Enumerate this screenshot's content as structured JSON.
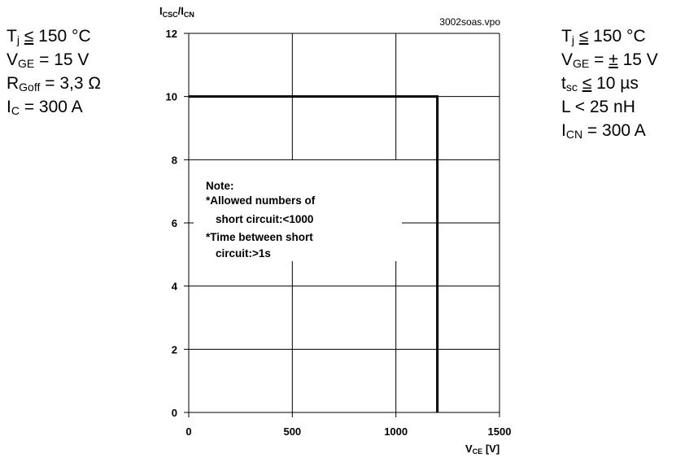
{
  "chart_data": {
    "type": "line",
    "file_label": "3002soas.vpo",
    "y_label": {
      "prefix": "I",
      "sub1": "CSC",
      "mid": "/I",
      "sub2": "CN"
    },
    "x_label": {
      "prefix": "V",
      "sub": "CE",
      "unit": "[V]"
    },
    "xlim": [
      0,
      1500
    ],
    "ylim": [
      0,
      12
    ],
    "x_ticks": [
      "0",
      "500",
      "1000",
      "1500"
    ],
    "y_ticks": [
      "0",
      "2",
      "4",
      "6",
      "8",
      "10",
      "12"
    ],
    "grid": true,
    "series": [
      {
        "x": [
          0,
          1200,
          1200
        ],
        "y": [
          10,
          10,
          0
        ]
      }
    ],
    "note": [
      "Note:",
      "*Allowed numbers of",
      "short circuit:<1000",
      "*Time between short",
      "circuit:>1s"
    ]
  },
  "conditions_left": [
    {
      "main": "T",
      "sub": "j",
      "rel": "≤",
      "value": "150 °C"
    },
    {
      "main": "V",
      "sub": "GE",
      "rel": "=",
      "value": "15 V"
    },
    {
      "main": "R",
      "sub": "Goff",
      "rel": "=",
      "value": "3,3 Ω"
    },
    {
      "main": "I",
      "sub": "C",
      "rel": "=",
      "value": "300 A"
    }
  ],
  "conditions_right": [
    {
      "main": "T",
      "sub": "j",
      "rel": "≤",
      "value": "150 °C"
    },
    {
      "main": "V",
      "sub": "GE",
      "rel": "=",
      "pm": "±",
      "value": "15 V"
    },
    {
      "main": "t",
      "sub": "sc",
      "rel": "≤",
      "value": "10 µs"
    },
    {
      "main": "L",
      "sub": "",
      "rel": "<",
      "value": "25 nH"
    },
    {
      "main": "I",
      "sub": "CN",
      "rel": "=",
      "value": "300 A"
    }
  ]
}
